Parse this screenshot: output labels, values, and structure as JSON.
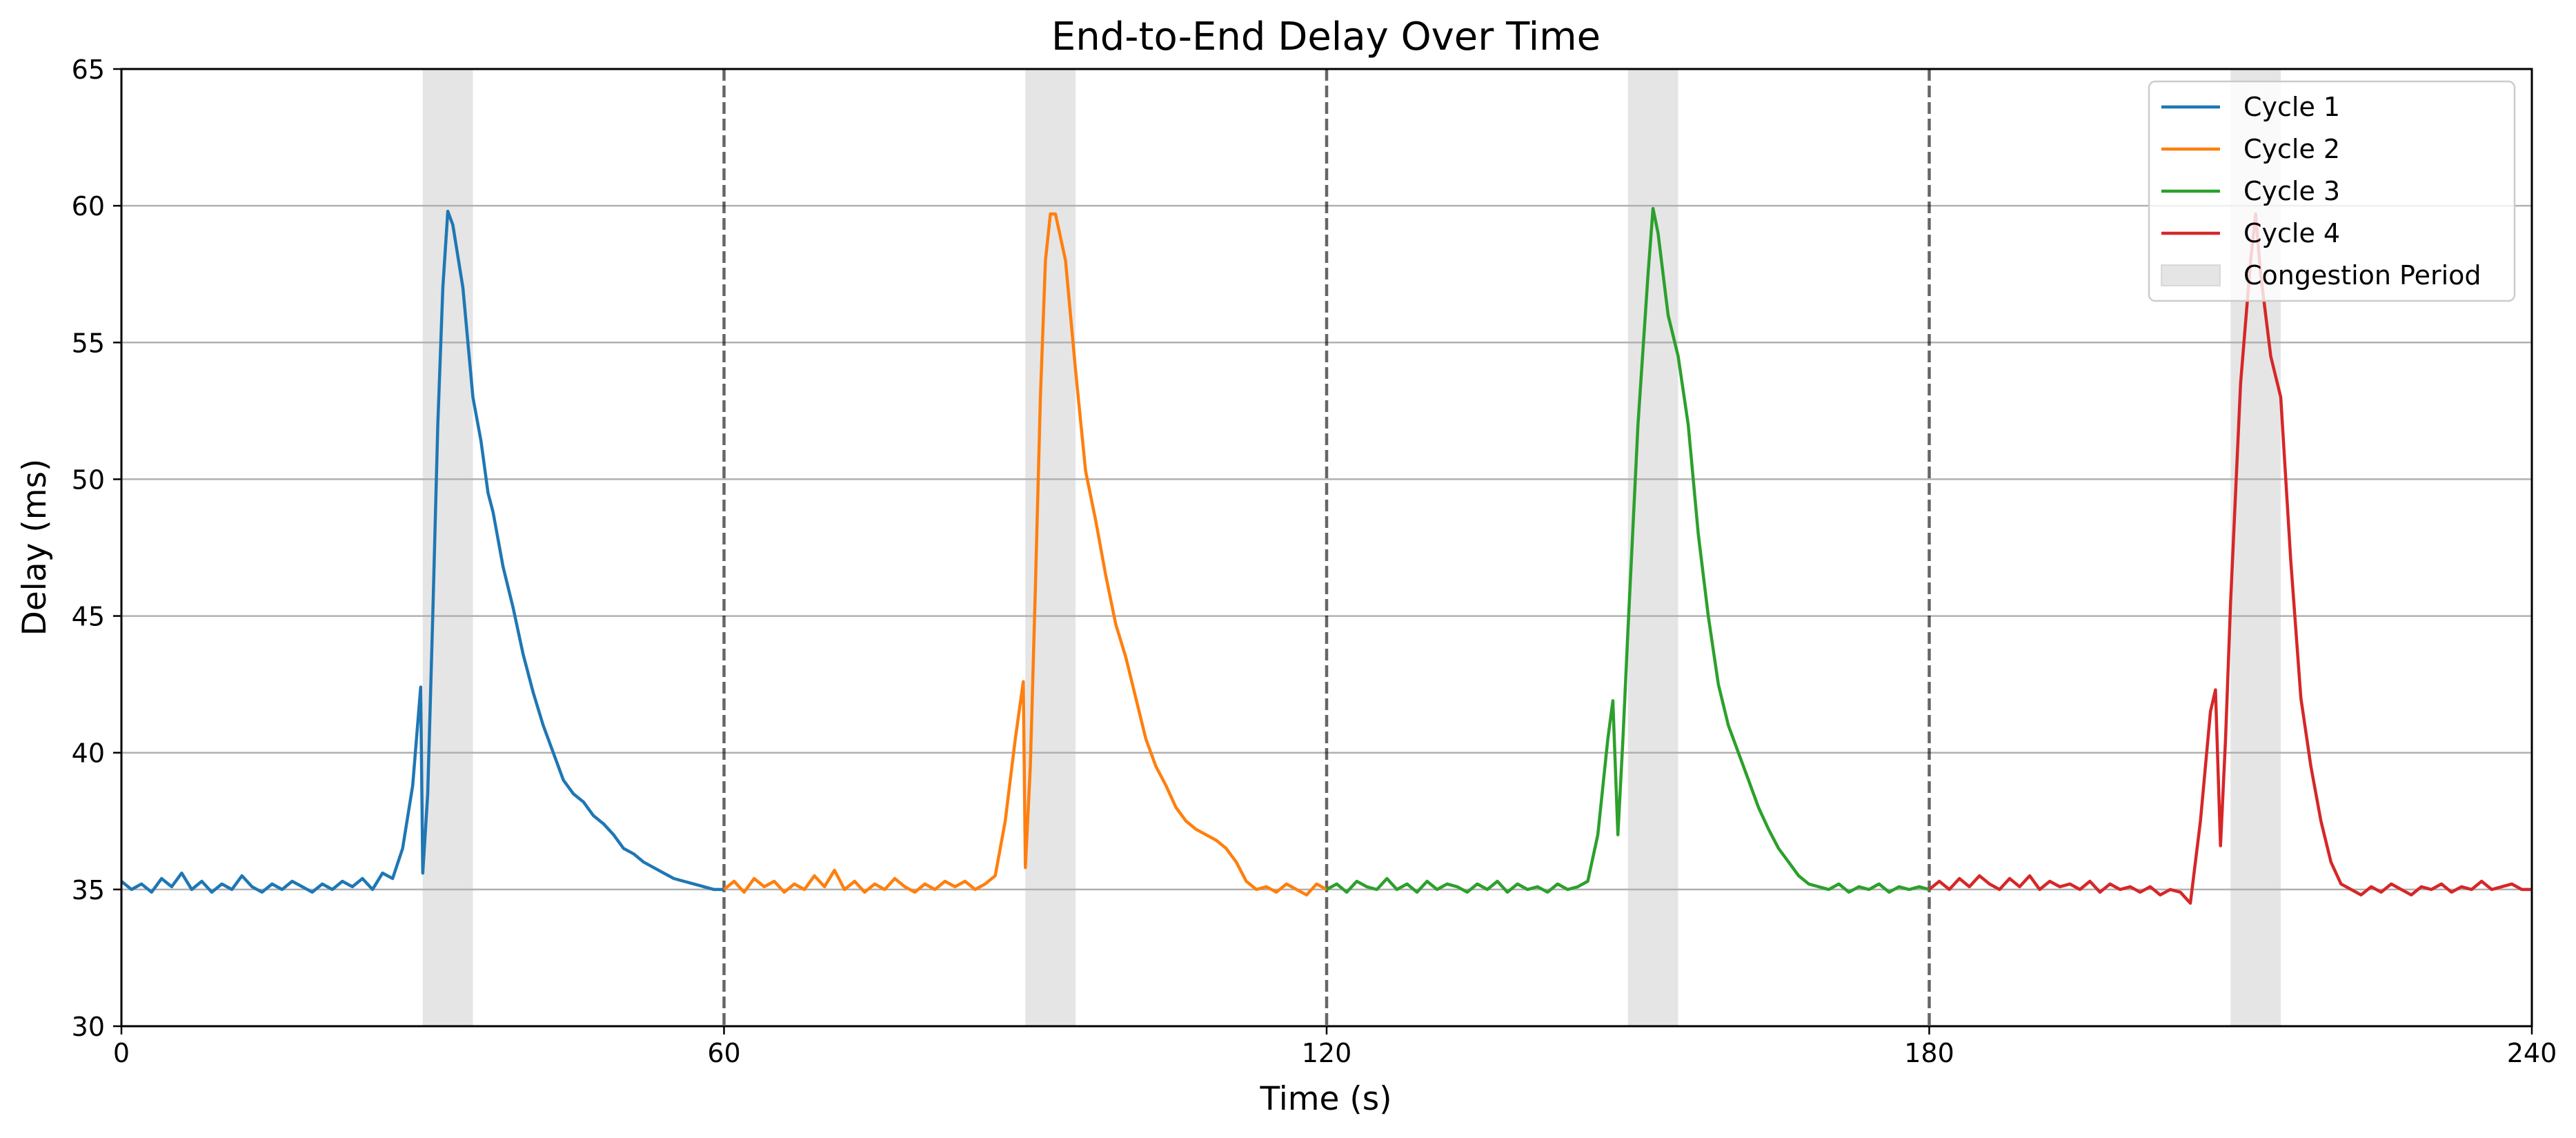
{
  "chart_data": {
    "type": "line",
    "title": "End-to-End Delay Over Time",
    "xlabel": "Time (s)",
    "ylabel": "Delay (ms)",
    "xlim": [
      0,
      240
    ],
    "ylim": [
      30,
      65
    ],
    "xticks": [
      0,
      60,
      120,
      180,
      240
    ],
    "yticks": [
      30,
      35,
      40,
      45,
      50,
      55,
      60,
      65
    ],
    "grid": "horizontal",
    "legend_position": "top-right",
    "cycle_boundaries": [
      60,
      120,
      180
    ],
    "congestion_periods": [
      [
        30,
        35
      ],
      [
        90,
        95
      ],
      [
        150,
        155
      ],
      [
        210,
        215
      ]
    ],
    "congestion_label": "Congestion Period",
    "congestion_color": "#e5e5e5",
    "series": [
      {
        "name": "Cycle 1",
        "color": "#1f77b4",
        "points": [
          [
            0,
            35.3
          ],
          [
            1,
            35.0
          ],
          [
            2,
            35.2
          ],
          [
            3,
            34.9
          ],
          [
            4,
            35.4
          ],
          [
            5,
            35.1
          ],
          [
            6,
            35.6
          ],
          [
            7,
            35.0
          ],
          [
            8,
            35.3
          ],
          [
            9,
            34.9
          ],
          [
            10,
            35.2
          ],
          [
            11,
            35.0
          ],
          [
            12,
            35.5
          ],
          [
            13,
            35.1
          ],
          [
            14,
            34.9
          ],
          [
            15,
            35.2
          ],
          [
            16,
            35.0
          ],
          [
            17,
            35.3
          ],
          [
            18,
            35.1
          ],
          [
            19,
            34.9
          ],
          [
            20,
            35.2
          ],
          [
            21,
            35.0
          ],
          [
            22,
            35.3
          ],
          [
            23,
            35.1
          ],
          [
            24,
            35.4
          ],
          [
            25,
            35.0
          ],
          [
            26,
            35.6
          ],
          [
            27,
            35.4
          ],
          [
            28,
            36.5
          ],
          [
            29,
            38.8
          ],
          [
            29.8,
            42.4
          ],
          [
            30,
            35.6
          ],
          [
            30.5,
            38.5
          ],
          [
            31,
            45.0
          ],
          [
            31.5,
            52.0
          ],
          [
            32,
            57.0
          ],
          [
            32.5,
            59.8
          ],
          [
            33,
            59.3
          ],
          [
            34,
            57.0
          ],
          [
            35,
            53.0
          ],
          [
            35.8,
            51.4
          ],
          [
            36.5,
            49.5
          ],
          [
            37,
            48.8
          ],
          [
            38,
            46.8
          ],
          [
            39,
            45.3
          ],
          [
            40,
            43.6
          ],
          [
            41,
            42.2
          ],
          [
            42,
            41.0
          ],
          [
            43,
            40.0
          ],
          [
            44,
            39.0
          ],
          [
            45,
            38.5
          ],
          [
            46,
            38.2
          ],
          [
            47,
            37.7
          ],
          [
            48,
            37.4
          ],
          [
            49,
            37.0
          ],
          [
            50,
            36.5
          ],
          [
            51,
            36.3
          ],
          [
            52,
            36.0
          ],
          [
            53,
            35.8
          ],
          [
            54,
            35.6
          ],
          [
            55,
            35.4
          ],
          [
            56,
            35.3
          ],
          [
            57,
            35.2
          ],
          [
            58,
            35.1
          ],
          [
            59,
            35.0
          ],
          [
            60,
            35.0
          ]
        ]
      },
      {
        "name": "Cycle 2",
        "color": "#ff7f0e",
        "points": [
          [
            60,
            35.0
          ],
          [
            61,
            35.3
          ],
          [
            62,
            34.9
          ],
          [
            63,
            35.4
          ],
          [
            64,
            35.1
          ],
          [
            65,
            35.3
          ],
          [
            66,
            34.9
          ],
          [
            67,
            35.2
          ],
          [
            68,
            35.0
          ],
          [
            69,
            35.5
          ],
          [
            70,
            35.1
          ],
          [
            71,
            35.7
          ],
          [
            72,
            35.0
          ],
          [
            73,
            35.3
          ],
          [
            74,
            34.9
          ],
          [
            75,
            35.2
          ],
          [
            76,
            35.0
          ],
          [
            77,
            35.4
          ],
          [
            78,
            35.1
          ],
          [
            79,
            34.9
          ],
          [
            80,
            35.2
          ],
          [
            81,
            35.0
          ],
          [
            82,
            35.3
          ],
          [
            83,
            35.1
          ],
          [
            84,
            35.3
          ],
          [
            85,
            35.0
          ],
          [
            86,
            35.2
          ],
          [
            87,
            35.5
          ],
          [
            88,
            37.5
          ],
          [
            89,
            40.5
          ],
          [
            89.8,
            42.6
          ],
          [
            90,
            35.8
          ],
          [
            90.5,
            39.5
          ],
          [
            91,
            46.0
          ],
          [
            91.5,
            53.0
          ],
          [
            92,
            58.0
          ],
          [
            92.5,
            59.7
          ],
          [
            93,
            59.7
          ],
          [
            94,
            58.0
          ],
          [
            95,
            54.0
          ],
          [
            96,
            50.3
          ],
          [
            97,
            48.5
          ],
          [
            98,
            46.5
          ],
          [
            99,
            44.7
          ],
          [
            100,
            43.5
          ],
          [
            101,
            42.0
          ],
          [
            102,
            40.5
          ],
          [
            103,
            39.5
          ],
          [
            104,
            38.8
          ],
          [
            105,
            38.0
          ],
          [
            106,
            37.5
          ],
          [
            107,
            37.2
          ],
          [
            108,
            37.0
          ],
          [
            109,
            36.8
          ],
          [
            110,
            36.5
          ],
          [
            111,
            36.0
          ],
          [
            112,
            35.3
          ],
          [
            113,
            35.0
          ],
          [
            114,
            35.1
          ],
          [
            115,
            34.9
          ],
          [
            116,
            35.2
          ],
          [
            117,
            35.0
          ],
          [
            118,
            34.8
          ],
          [
            119,
            35.2
          ],
          [
            120,
            35.0
          ]
        ]
      },
      {
        "name": "Cycle 3",
        "color": "#2ca02c",
        "points": [
          [
            120,
            35.0
          ],
          [
            121,
            35.2
          ],
          [
            122,
            34.9
          ],
          [
            123,
            35.3
          ],
          [
            124,
            35.1
          ],
          [
            125,
            35.0
          ],
          [
            126,
            35.4
          ],
          [
            127,
            35.0
          ],
          [
            128,
            35.2
          ],
          [
            129,
            34.9
          ],
          [
            130,
            35.3
          ],
          [
            131,
            35.0
          ],
          [
            132,
            35.2
          ],
          [
            133,
            35.1
          ],
          [
            134,
            34.9
          ],
          [
            135,
            35.2
          ],
          [
            136,
            35.0
          ],
          [
            137,
            35.3
          ],
          [
            138,
            34.9
          ],
          [
            139,
            35.2
          ],
          [
            140,
            35.0
          ],
          [
            141,
            35.1
          ],
          [
            142,
            34.9
          ],
          [
            143,
            35.2
          ],
          [
            144,
            35.0
          ],
          [
            145,
            35.1
          ],
          [
            146,
            35.3
          ],
          [
            147,
            37.0
          ],
          [
            148,
            40.5
          ],
          [
            148.5,
            41.9
          ],
          [
            149,
            37.0
          ],
          [
            149.5,
            40.5
          ],
          [
            150,
            44.5
          ],
          [
            151,
            52.0
          ],
          [
            152,
            57.5
          ],
          [
            152.5,
            59.9
          ],
          [
            153,
            59.0
          ],
          [
            154,
            56.0
          ],
          [
            155,
            54.5
          ],
          [
            156,
            52.0
          ],
          [
            157,
            48.0
          ],
          [
            158,
            45.0
          ],
          [
            159,
            42.5
          ],
          [
            160,
            41.0
          ],
          [
            161,
            40.0
          ],
          [
            162,
            39.0
          ],
          [
            163,
            38.0
          ],
          [
            164,
            37.2
          ],
          [
            165,
            36.5
          ],
          [
            166,
            36.0
          ],
          [
            167,
            35.5
          ],
          [
            168,
            35.2
          ],
          [
            169,
            35.1
          ],
          [
            170,
            35.0
          ],
          [
            171,
            35.2
          ],
          [
            172,
            34.9
          ],
          [
            173,
            35.1
          ],
          [
            174,
            35.0
          ],
          [
            175,
            35.2
          ],
          [
            176,
            34.9
          ],
          [
            177,
            35.1
          ],
          [
            178,
            35.0
          ],
          [
            179,
            35.1
          ],
          [
            180,
            35.0
          ]
        ]
      },
      {
        "name": "Cycle 4",
        "color": "#d62728",
        "points": [
          [
            180,
            35.0
          ],
          [
            181,
            35.3
          ],
          [
            182,
            35.0
          ],
          [
            183,
            35.4
          ],
          [
            184,
            35.1
          ],
          [
            185,
            35.5
          ],
          [
            186,
            35.2
          ],
          [
            187,
            35.0
          ],
          [
            188,
            35.4
          ],
          [
            189,
            35.1
          ],
          [
            190,
            35.5
          ],
          [
            191,
            35.0
          ],
          [
            192,
            35.3
          ],
          [
            193,
            35.1
          ],
          [
            194,
            35.2
          ],
          [
            195,
            35.0
          ],
          [
            196,
            35.3
          ],
          [
            197,
            34.9
          ],
          [
            198,
            35.2
          ],
          [
            199,
            35.0
          ],
          [
            200,
            35.1
          ],
          [
            201,
            34.9
          ],
          [
            202,
            35.1
          ],
          [
            203,
            34.8
          ],
          [
            204,
            35.0
          ],
          [
            205,
            34.9
          ],
          [
            206,
            34.5
          ],
          [
            207,
            37.5
          ],
          [
            208,
            41.5
          ],
          [
            208.5,
            42.3
          ],
          [
            209,
            36.6
          ],
          [
            209.5,
            40.5
          ],
          [
            210,
            45.5
          ],
          [
            211,
            53.5
          ],
          [
            212,
            58.0
          ],
          [
            212.5,
            59.7
          ],
          [
            213,
            57.5
          ],
          [
            214,
            54.5
          ],
          [
            215,
            53.0
          ],
          [
            216,
            47.0
          ],
          [
            217,
            42.0
          ],
          [
            218,
            39.5
          ],
          [
            219,
            37.5
          ],
          [
            220,
            36.0
          ],
          [
            221,
            35.2
          ],
          [
            222,
            35.0
          ],
          [
            223,
            34.8
          ],
          [
            224,
            35.1
          ],
          [
            225,
            34.9
          ],
          [
            226,
            35.2
          ],
          [
            227,
            35.0
          ],
          [
            228,
            34.8
          ],
          [
            229,
            35.1
          ],
          [
            230,
            35.0
          ],
          [
            231,
            35.2
          ],
          [
            232,
            34.9
          ],
          [
            233,
            35.1
          ],
          [
            234,
            35.0
          ],
          [
            235,
            35.3
          ],
          [
            236,
            35.0
          ],
          [
            237,
            35.1
          ],
          [
            238,
            35.2
          ],
          [
            239,
            35.0
          ],
          [
            240,
            35.0
          ]
        ]
      }
    ]
  }
}
